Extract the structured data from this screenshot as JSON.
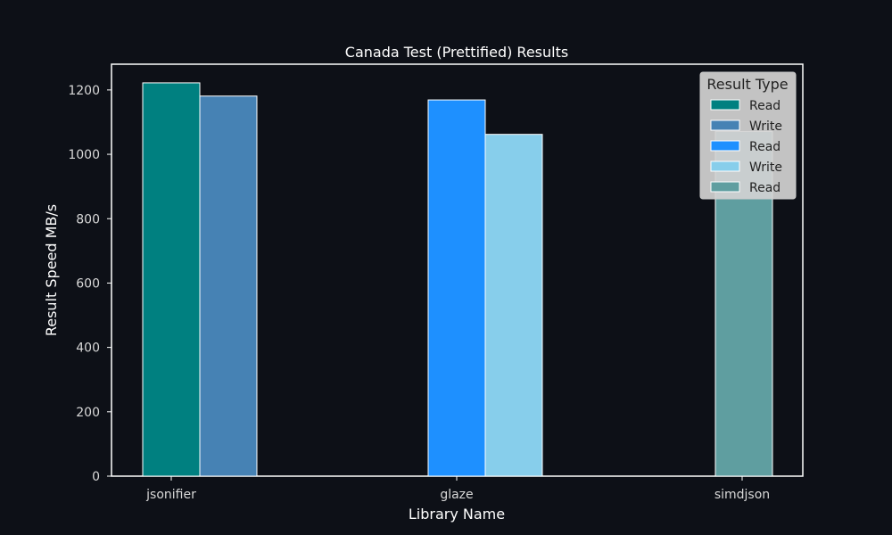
{
  "chart_data": {
    "type": "bar",
    "title": "Canada Test (Prettified) Results",
    "xlabel": "Library Name",
    "ylabel": "Result Speed MB/s",
    "categories": [
      "jsonifier",
      "glaze",
      "simdjson"
    ],
    "ylim": [
      0,
      1280
    ],
    "yticks": [
      0,
      200,
      400,
      600,
      800,
      1000,
      1200
    ],
    "bars": [
      {
        "category": "jsonifier",
        "type": "Read",
        "value": 1222,
        "color": "#008080"
      },
      {
        "category": "jsonifier",
        "type": "Write",
        "value": 1181,
        "color": "#4682b4"
      },
      {
        "category": "glaze",
        "type": "Read",
        "value": 1169,
        "color": "#1e90ff"
      },
      {
        "category": "glaze",
        "type": "Write",
        "value": 1062,
        "color": "#87ceeb"
      },
      {
        "category": "simdjson",
        "type": "Read",
        "value": 1071,
        "color": "#5f9ea0"
      }
    ],
    "legend": {
      "title": "Result Type",
      "placement": "top-right",
      "entries": [
        {
          "label": "Read",
          "color": "#008080"
        },
        {
          "label": "Write",
          "color": "#4682b4"
        },
        {
          "label": "Read",
          "color": "#1e90ff"
        },
        {
          "label": "Write",
          "color": "#87ceeb"
        },
        {
          "label": "Read",
          "color": "#5f9ea0"
        }
      ]
    },
    "grid": false
  }
}
